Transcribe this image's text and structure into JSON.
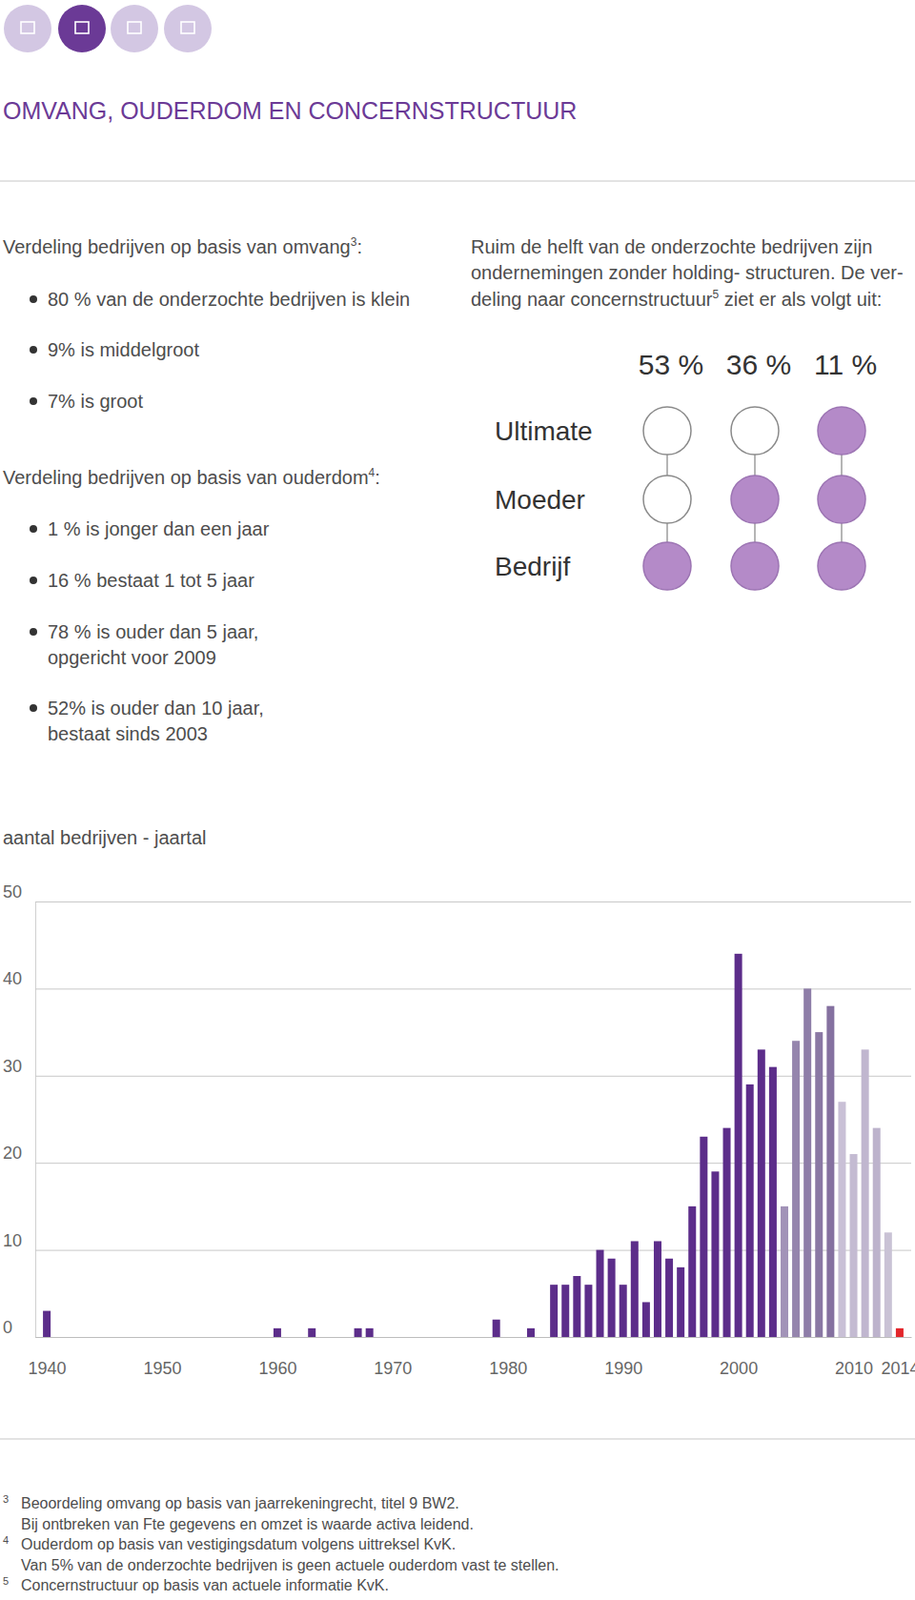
{
  "header": {
    "title": "OMVANG, OUDERDOM EN CONCERNSTRUCTUUR"
  },
  "size": {
    "heading": {
      "text": "Verdeling bedrijven op basis van omvang",
      "sup": "3",
      "after": ":"
    },
    "bullets": [
      [
        "80 % van de onderzochte bedrijven is klein"
      ],
      [
        "9% is middelgroot"
      ],
      [
        "7% is groot"
      ]
    ]
  },
  "age": {
    "heading": {
      "text": "Verdeling bedrijven op basis van ouderdom",
      "sup": "4",
      "after": ":"
    },
    "bullets": [
      [
        "1 % is jonger dan een jaar"
      ],
      [
        "16 % bestaat 1 tot 5 jaar"
      ],
      [
        "78 % is ouder dan 5 jaar,",
        "opgericht voor 2009"
      ],
      [
        "52% is ouder dan 10 jaar,",
        "bestaat sinds 2003"
      ]
    ]
  },
  "structure": {
    "intro": [
      {
        "text": "Ruim de helft van de onderzochte bedrijven zijn"
      },
      {
        "text": "ondernemingen zonder holding- structuren. De ver-"
      },
      {
        "text": "deling naar concernstructuur",
        "sup": "5",
        "after": " ziet er als volgt uit:"
      }
    ],
    "levels": [
      "Ultimate",
      "Moeder",
      "Bedrijf"
    ],
    "columns": [
      {
        "label": "53 %",
        "filled": [
          false,
          false,
          true
        ]
      },
      {
        "label": "36 %",
        "filled": [
          false,
          true,
          true
        ]
      },
      {
        "label": "11 %",
        "filled": [
          true,
          true,
          true
        ]
      }
    ]
  },
  "chart_data": {
    "type": "bar",
    "title": "aantal bedrijven - jaartal",
    "x": [
      1940,
      1960,
      1963,
      1967,
      1968,
      1979,
      1982,
      1984,
      1985,
      1986,
      1987,
      1988,
      1989,
      1990,
      1991,
      1992,
      1993,
      1994,
      1995,
      1996,
      1997,
      1998,
      1999,
      2000,
      2001,
      2002,
      2003,
      2004,
      2005,
      2006,
      2007,
      2008,
      2009,
      2010,
      2011,
      2012,
      2013,
      2014
    ],
    "values": [
      3,
      1,
      1,
      1,
      1,
      2,
      1,
      6,
      6,
      7,
      6,
      10,
      9,
      6,
      11,
      4,
      11,
      9,
      8,
      15,
      23,
      19,
      24,
      44,
      29,
      33,
      31,
      15,
      34,
      40,
      35,
      38,
      27,
      21,
      33,
      24,
      12,
      1
    ],
    "colors": [
      "#5c2d8a",
      "#5c2d8a",
      "#5c2d8a",
      "#5c2d8a",
      "#5c2d8a",
      "#5c2d8a",
      "#5c2d8a",
      "#5c2d8a",
      "#5c2d8a",
      "#5c2d8a",
      "#5c2d8a",
      "#5c2d8a",
      "#5c2d8a",
      "#5c2d8a",
      "#5c2d8a",
      "#5c2d8a",
      "#5c2d8a",
      "#5c2d8a",
      "#5c2d8a",
      "#5c2d8a",
      "#5c2d8a",
      "#5c2d8a",
      "#5c2d8a",
      "#5c2d8a",
      "#5c2d8a",
      "#5c2d8a",
      "#5c2d8a",
      "#a293b8",
      "#9585ad",
      "#8e7da8",
      "#8a78a4",
      "#8571a0",
      "#c9c0d6",
      "#c4bbd2",
      "#c0b6cf",
      "#bdb3cc",
      "#c9c2d5",
      "#e3262b"
    ],
    "xlim": [
      1939,
      2015
    ],
    "xticks": [
      1940,
      1950,
      1960,
      1970,
      1980,
      1990,
      2000,
      2010,
      2014
    ],
    "ylim": [
      0,
      50
    ],
    "yticks": [
      0,
      10,
      20,
      30,
      40,
      50
    ],
    "grid": true
  },
  "footnotes": [
    {
      "number": "3",
      "lines": [
        "Beoordeling omvang op basis van jaarrekeningrecht, titel 9 BW2.",
        "Bij ontbreken van Fte gegevens en omzet is waarde activa leidend."
      ]
    },
    {
      "number": "4",
      "lines": [
        "Ouderdom op basis van vestigingsdatum volgens uittreksel KvK.",
        "Van 5% van de onderzochte bedrijven is geen actuele ouderdom vast te stellen."
      ]
    },
    {
      "number": "5",
      "lines": [
        "Concernstructuur op basis van actuele informatie KvK."
      ]
    }
  ]
}
